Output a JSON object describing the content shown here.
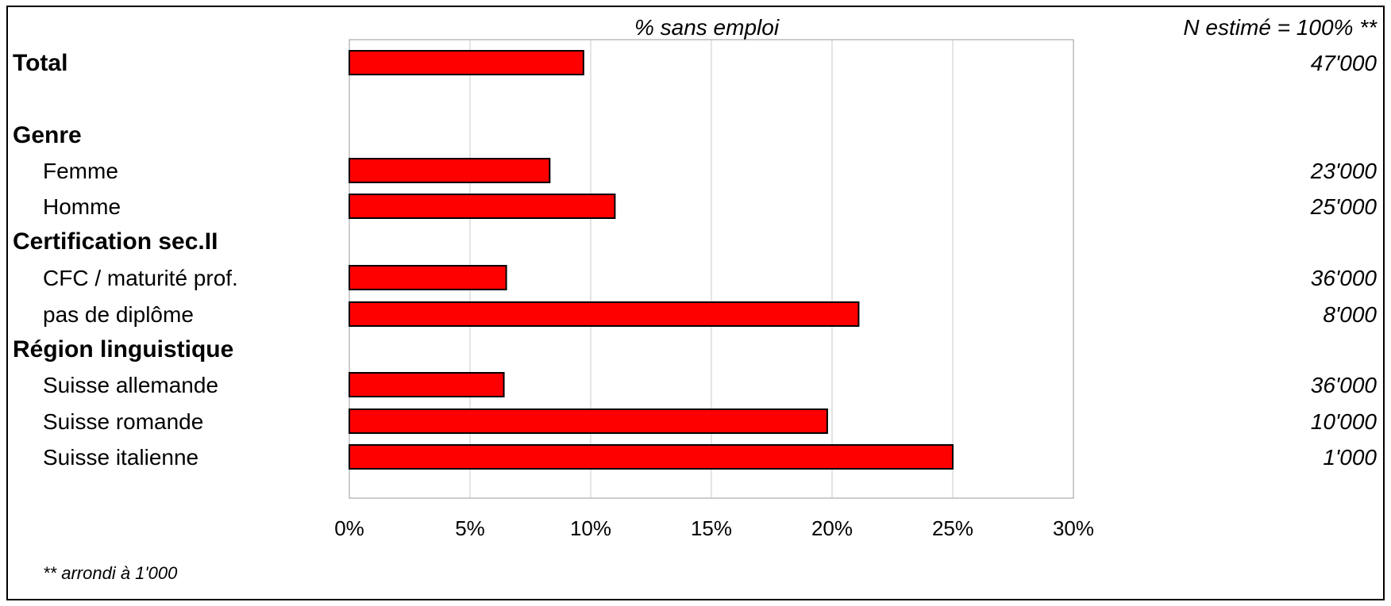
{
  "chart_data": {
    "type": "bar",
    "orientation": "horizontal",
    "title": "% sans emploi",
    "n_header": "N estimé = 100% **",
    "footnote": "** arrondi à 1'000",
    "xlim": [
      0,
      30
    ],
    "xticks": [
      "0%",
      "5%",
      "10%",
      "15%",
      "20%",
      "25%",
      "30%"
    ],
    "xtick_values": [
      0,
      5,
      10,
      15,
      20,
      25,
      30
    ],
    "grid": "vertical",
    "bar_color": "#ff0000",
    "rows": [
      {
        "label": "Total",
        "kind": "group",
        "value": 9.7,
        "n": "47'000"
      },
      {
        "label": "Genre",
        "kind": "group"
      },
      {
        "label": "Femme",
        "kind": "item",
        "value": 8.3,
        "n": "23'000"
      },
      {
        "label": "Homme",
        "kind": "item",
        "value": 11.0,
        "n": "25'000"
      },
      {
        "label": "Certification sec.II",
        "kind": "group"
      },
      {
        "label": "CFC / maturité prof.",
        "kind": "item",
        "value": 6.5,
        "n": "36'000"
      },
      {
        "label": "pas de diplôme",
        "kind": "item",
        "value": 21.1,
        "n": "8'000"
      },
      {
        "label": "Région linguistique",
        "kind": "group"
      },
      {
        "label": "Suisse allemande",
        "kind": "item",
        "value": 6.4,
        "n": "36'000"
      },
      {
        "label": "Suisse romande",
        "kind": "item",
        "value": 19.8,
        "n": "10'000"
      },
      {
        "label": "Suisse italienne",
        "kind": "item",
        "value": 25.0,
        "n": "1'000"
      }
    ]
  }
}
